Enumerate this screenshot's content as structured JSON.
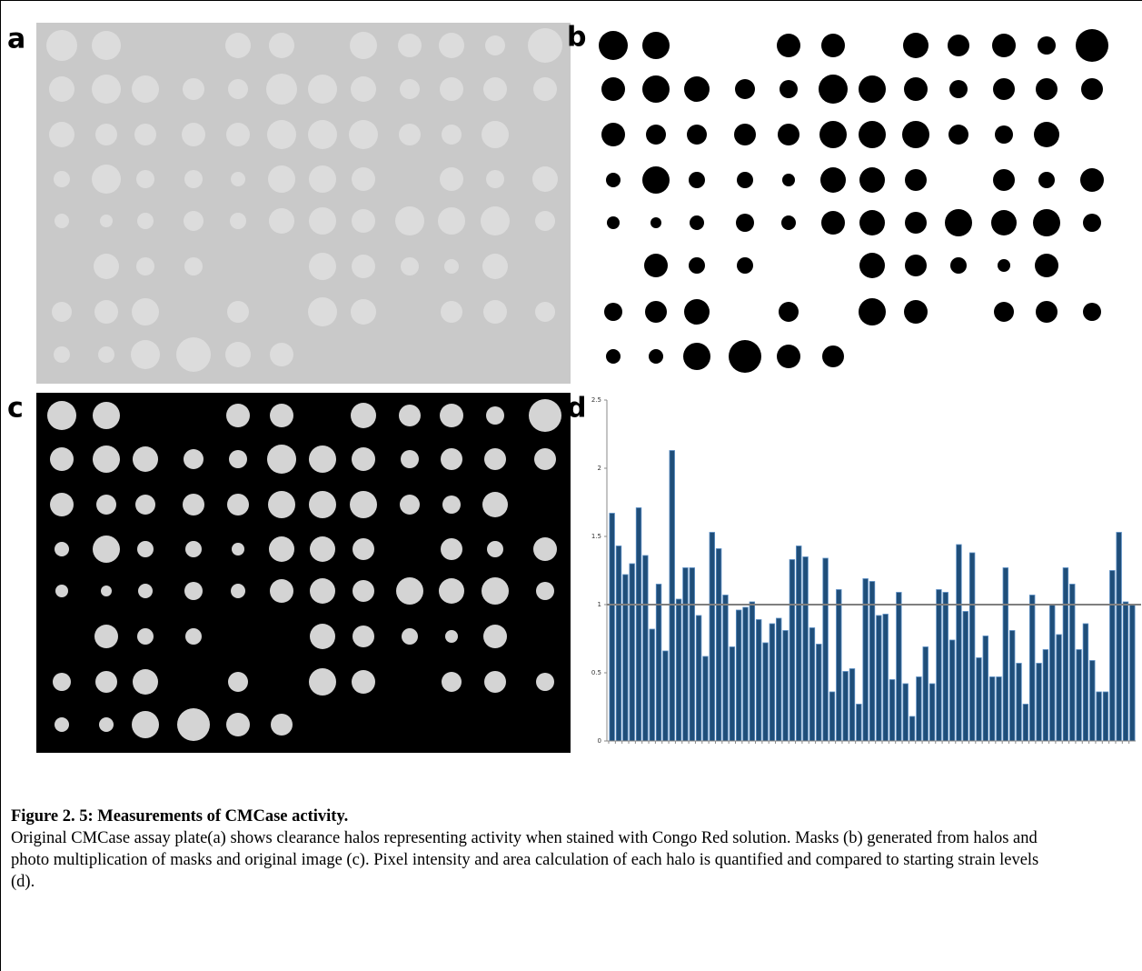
{
  "panels": {
    "a": "a",
    "b": "b",
    "c": "c",
    "d": "d"
  },
  "chart_data": {
    "type": "bar",
    "values": [
      1.67,
      1.43,
      1.22,
      1.3,
      1.71,
      1.36,
      0.82,
      1.15,
      0.66,
      2.13,
      1.04,
      1.27,
      1.27,
      0.92,
      0.62,
      1.53,
      1.41,
      1.07,
      0.69,
      0.96,
      0.98,
      1.02,
      0.89,
      0.72,
      0.86,
      0.9,
      0.81,
      1.33,
      1.43,
      1.35,
      0.83,
      0.71,
      1.34,
      0.36,
      1.11,
      0.51,
      0.53,
      0.27,
      1.19,
      1.17,
      0.92,
      0.93,
      0.45,
      1.09,
      0.42,
      0.18,
      0.47,
      0.69,
      0.42,
      1.11,
      1.09,
      0.74,
      1.44,
      0.95,
      1.38,
      0.61,
      0.77,
      0.47,
      0.47,
      1.27,
      0.81,
      0.57,
      0.27,
      1.07,
      0.57,
      0.67,
      1.0,
      0.78,
      1.27,
      1.15,
      0.67,
      0.86,
      0.59,
      0.36,
      0.36,
      1.25,
      1.53,
      1.02,
      1.0
    ],
    "color": "#1f4e79",
    "ylim": [
      0,
      2.5
    ],
    "yticks": [
      0,
      0.5,
      1,
      1.5,
      2,
      2.5
    ],
    "reference_line": 1
  },
  "caption": {
    "title": "Figure 2. 5: Measurements of CMCase activity.",
    "text": "Original CMCase assay plate(a) shows clearance halos representing activity when stained with Congo Red solution. Masks (b) generated from halos and photo multiplication of masks and original image (c). Pixel intensity and area calculation of each halo is quantified and compared to starting strain levels (d)."
  }
}
